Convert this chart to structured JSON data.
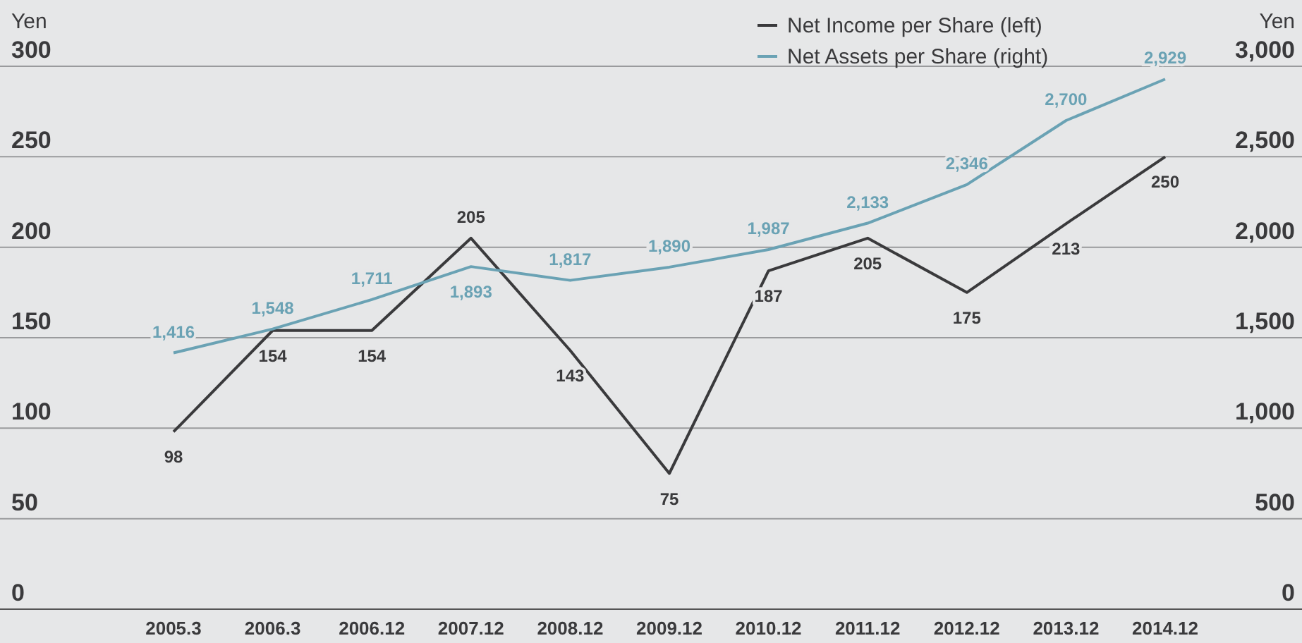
{
  "chart_data": {
    "type": "line",
    "ylabel": "Yen",
    "y2label": "Yen",
    "categories": [
      "2005.3",
      "2006.3",
      "2006.12",
      "2007.12",
      "2008.12",
      "2009.12",
      "2010.12",
      "2011.12",
      "2012.12",
      "2013.12",
      "2014.12"
    ],
    "series": [
      {
        "name": "Net Income per Share (left)",
        "color": "#3a3a3c",
        "values": [
          98,
          154,
          154,
          205,
          143,
          75,
          187,
          205,
          175,
          213,
          250
        ]
      },
      {
        "name": "Net Assets per Share (right)",
        "color": "#6aa2b4",
        "axis": "y2",
        "values": [
          1416,
          1548,
          1711,
          1893,
          1817,
          1890,
          1987,
          2133,
          2346,
          2700,
          2929
        ],
        "value_labels": [
          "1,416",
          "1,548",
          "1,711",
          "1,893",
          "1,817",
          "1,890",
          "1,987",
          "2,133",
          "2,346",
          "2,700",
          "2,929"
        ]
      }
    ],
    "ylim": [
      0,
      300
    ],
    "yticks": [
      0,
      50,
      100,
      150,
      200,
      250,
      300
    ],
    "y2lim": [
      0,
      3000
    ],
    "y2ticks": [
      {
        "value": 0,
        "label": "0"
      },
      {
        "value": 500,
        "label": "500"
      },
      {
        "value": 1000,
        "label": "1,000"
      },
      {
        "value": 1500,
        "label": "1,500"
      },
      {
        "value": 2000,
        "label": "2,000"
      },
      {
        "value": 2500,
        "label": "2,500"
      },
      {
        "value": 3000,
        "label": "3,000"
      }
    ],
    "grid": "y",
    "legend": "top right",
    "data_labels": true,
    "marker": "none",
    "line_style": "solid"
  }
}
